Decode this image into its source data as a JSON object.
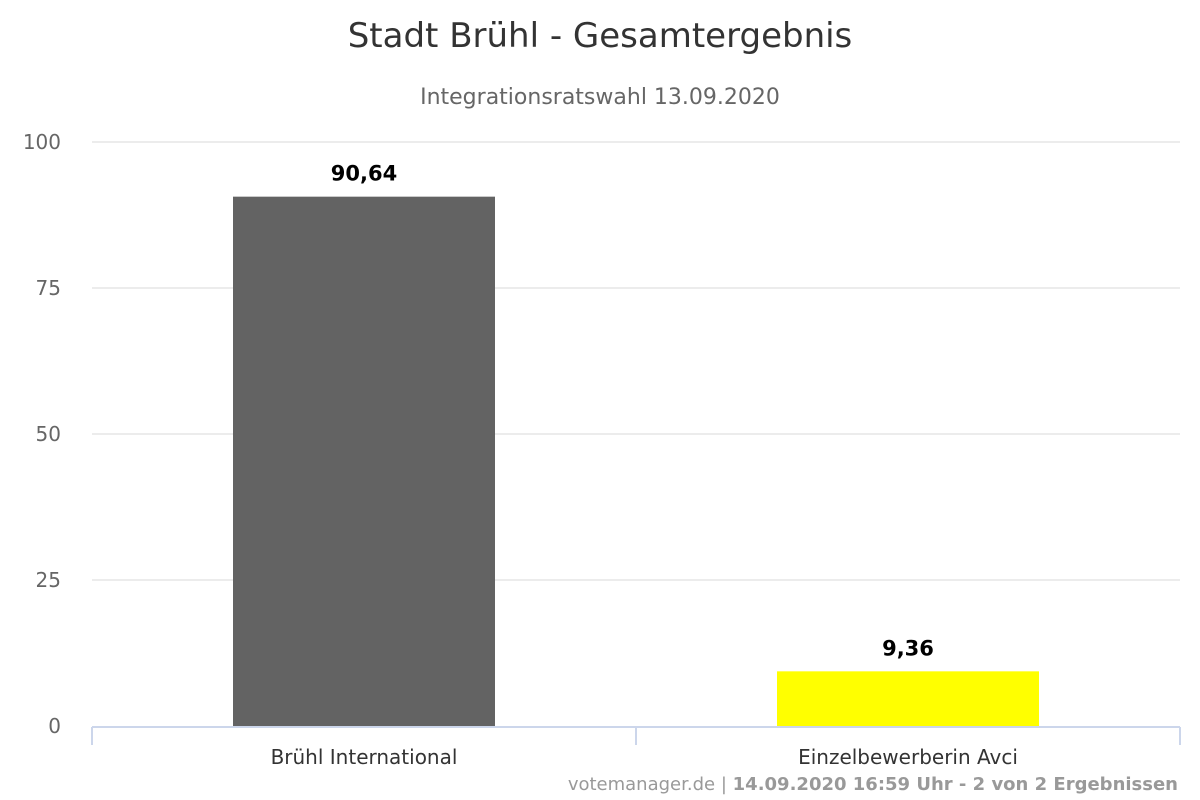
{
  "chart_data": {
    "type": "bar",
    "title": "Stadt Brühl - Gesamtergebnis",
    "subtitle": "Integrationsratswahl 13.09.2020",
    "xlabel": "",
    "ylabel": "",
    "categories": [
      "Brühl International",
      "Einzelbewerberin Avci"
    ],
    "values": [
      90.64,
      9.36
    ],
    "data_labels": [
      "90,64",
      "9,36"
    ],
    "colors": [
      "#636363",
      "#ffff00"
    ],
    "ylim": [
      0,
      100
    ],
    "yticks": [
      0,
      25,
      50,
      75,
      100
    ],
    "ytick_labels": [
      "0",
      "25",
      "50",
      "75",
      "100"
    ],
    "grid": true,
    "legend": "none"
  },
  "credits": {
    "source": "votemanager.de",
    "separator": "|",
    "timestamp": "14.09.2020 16:59 Uhr - 2 von 2 Ergebnissen"
  },
  "colors": {
    "grid": "#e6e6e6",
    "axis": "#ccd6eb"
  }
}
